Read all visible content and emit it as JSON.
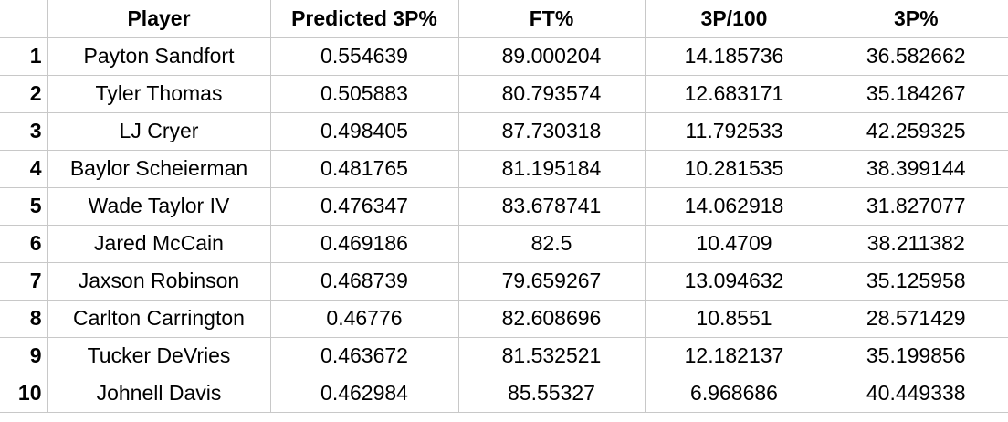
{
  "table": {
    "columns": [
      "",
      "Player",
      "Predicted 3P%",
      "FT%",
      "3P/100",
      "3P%"
    ],
    "rows": [
      {
        "index": "1",
        "player": "Payton Sandfort",
        "predicted_3p_pct": "0.554639",
        "ft_pct": "89.000204",
        "three_p_per_100": "14.185736",
        "three_p_pct": "36.582662"
      },
      {
        "index": "2",
        "player": "Tyler Thomas",
        "predicted_3p_pct": "0.505883",
        "ft_pct": "80.793574",
        "three_p_per_100": "12.683171",
        "three_p_pct": "35.184267"
      },
      {
        "index": "3",
        "player": "LJ Cryer",
        "predicted_3p_pct": "0.498405",
        "ft_pct": "87.730318",
        "three_p_per_100": "11.792533",
        "three_p_pct": "42.259325"
      },
      {
        "index": "4",
        "player": "Baylor Scheierman",
        "predicted_3p_pct": "0.481765",
        "ft_pct": "81.195184",
        "three_p_per_100": "10.281535",
        "three_p_pct": "38.399144"
      },
      {
        "index": "5",
        "player": "Wade Taylor IV",
        "predicted_3p_pct": "0.476347",
        "ft_pct": "83.678741",
        "three_p_per_100": "14.062918",
        "three_p_pct": "31.827077"
      },
      {
        "index": "6",
        "player": "Jared McCain",
        "predicted_3p_pct": "0.469186",
        "ft_pct": "82.5",
        "three_p_per_100": "10.4709",
        "three_p_pct": "38.211382"
      },
      {
        "index": "7",
        "player": "Jaxson Robinson",
        "predicted_3p_pct": "0.468739",
        "ft_pct": "79.659267",
        "three_p_per_100": "13.094632",
        "three_p_pct": "35.125958"
      },
      {
        "index": "8",
        "player": "Carlton Carrington",
        "predicted_3p_pct": "0.46776",
        "ft_pct": "82.608696",
        "three_p_per_100": "10.8551",
        "three_p_pct": "28.571429"
      },
      {
        "index": "9",
        "player": "Tucker DeVries",
        "predicted_3p_pct": "0.463672",
        "ft_pct": "81.532521",
        "three_p_per_100": "12.182137",
        "three_p_pct": "35.199856"
      },
      {
        "index": "10",
        "player": "Johnell Davis",
        "predicted_3p_pct": "0.462984",
        "ft_pct": "85.55327",
        "three_p_per_100": "6.968686",
        "three_p_pct": "40.449338"
      }
    ]
  }
}
